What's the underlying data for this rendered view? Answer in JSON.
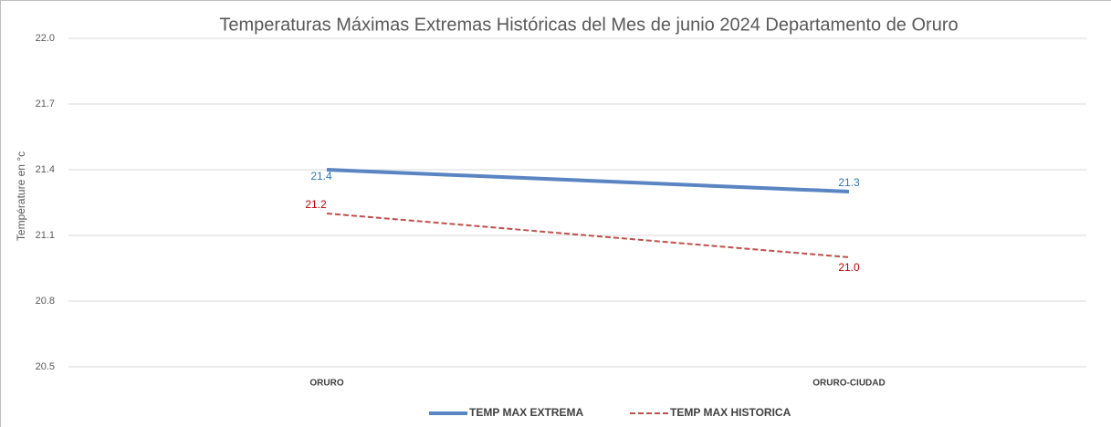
{
  "chart_data": {
    "type": "line",
    "title": "Temperaturas Máximas Extremas Históricas del Mes de junio 2024 Departamento de Oruro",
    "y_label": "Température en °c",
    "categories": [
      "ORURO",
      "ORURO-CIUDAD"
    ],
    "series": [
      {
        "name": "TEMP MAX EXTREMA",
        "color": "#5a84c2",
        "dash": false,
        "label_color": "#2e75b6",
        "values": [
          21.4,
          21.3
        ],
        "value_labels": [
          "21.4",
          "21.3"
        ]
      },
      {
        "name": "TEMP MAX HISTORICA",
        "color": "#c0504d",
        "dash": true,
        "label_color": "#c00000",
        "values": [
          21.2,
          21.0
        ],
        "value_labels": [
          "21.2",
          "21.0"
        ]
      }
    ],
    "ylim": [
      20.5,
      22.0
    ],
    "yticks": [
      20.5,
      20.8,
      21.1,
      21.4,
      21.7,
      {
        "value": 22,
        "label": "22.0"
      }
    ],
    "grid": true,
    "legend": "bottom"
  }
}
